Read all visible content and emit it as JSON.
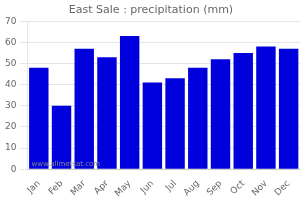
{
  "chart_data": {
    "type": "bar",
    "title": "East Sale : precipitation (mm)",
    "categories": [
      "Jan",
      "Feb",
      "Mar",
      "Apr",
      "May",
      "Jun",
      "Jul",
      "Aug",
      "Sep",
      "Oct",
      "Nov",
      "Dec"
    ],
    "values": [
      48,
      30,
      57,
      53,
      63,
      41,
      43,
      48,
      52,
      55,
      58,
      57
    ],
    "color": "#0000dd",
    "ylim": [
      0,
      70
    ],
    "yticks": [
      0,
      10,
      20,
      30,
      40,
      50,
      60,
      70
    ],
    "grid": true,
    "annotations": [
      "www.allmetsat.com"
    ]
  }
}
